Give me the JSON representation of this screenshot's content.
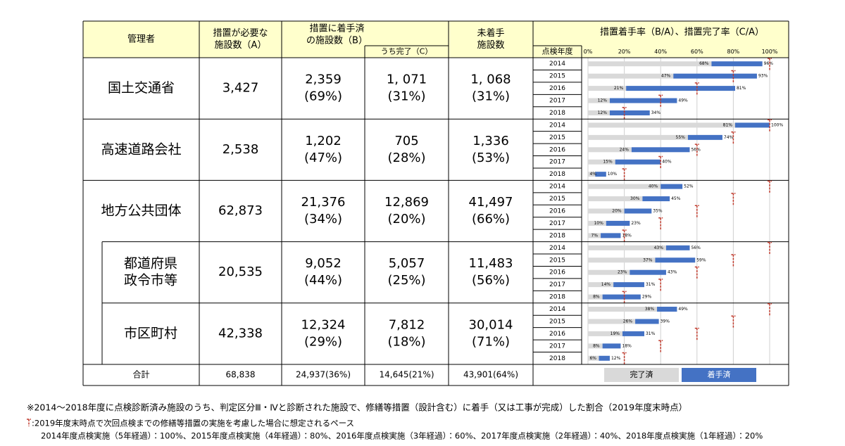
{
  "table": {
    "headers": {
      "manager": "管理者",
      "needed": [
        "措置が必要な",
        "施設数（A）"
      ],
      "started": [
        "措置に着手済",
        "の施設数（B）"
      ],
      "completed": "うち完了（C）",
      "not_started": [
        "未着手",
        "施設数"
      ],
      "rate": "措置着手率（B/A）、措置完了率（C/A）",
      "year": "点検年度"
    },
    "xlim": [
      0,
      100
    ],
    "xticks": [
      {
        "value": 0,
        "label": "0%"
      },
      {
        "value": 20,
        "label": "20%"
      },
      {
        "value": 40,
        "label": "40%"
      },
      {
        "value": 60,
        "label": "60%"
      },
      {
        "value": 80,
        "label": "80%"
      },
      {
        "value": 100,
        "label": "100%"
      }
    ],
    "rows": [
      {
        "name": [
          "国土交通省"
        ],
        "needed": "3,427",
        "started": [
          "2,359",
          "(69%)"
        ],
        "completed": [
          "1, 071",
          "(31%)"
        ],
        "not_started": [
          "1, 068",
          "(31%)"
        ],
        "years": [
          "2014",
          "2015",
          "2016",
          "2017",
          "2018"
        ],
        "completed_rate": {
          "values": [
            68,
            47,
            21,
            12,
            12
          ],
          "value_labels": [
            "68%",
            "47%",
            "21%",
            "12%",
            "12%"
          ]
        },
        "started_rate": {
          "values": [
            96,
            93,
            81,
            49,
            34
          ],
          "value_labels": [
            "96%",
            "93%",
            "81%",
            "49%",
            "34%"
          ]
        },
        "pace": [
          100,
          80,
          60,
          40,
          20
        ]
      },
      {
        "name": [
          "高速道路会社"
        ],
        "needed": "2,538",
        "started": [
          "1,202",
          "(47%)"
        ],
        "completed": [
          "705",
          "(28%)"
        ],
        "not_started": [
          "1,336",
          "(53%)"
        ],
        "years": [
          "2014",
          "2015",
          "2016",
          "2017",
          "2018"
        ],
        "completed_rate": {
          "values": [
            81,
            55,
            24,
            15,
            4
          ],
          "value_labels": [
            "81%",
            "55%",
            "24%",
            "15%",
            "4%"
          ]
        },
        "started_rate": {
          "values": [
            100,
            74,
            56,
            40,
            10
          ],
          "value_labels": [
            "100%",
            "74%",
            "56%",
            "40%",
            "10%"
          ]
        },
        "pace": [
          100,
          80,
          60,
          40,
          20
        ]
      },
      {
        "name": [
          "地方公共団体"
        ],
        "needed": "62,873",
        "started": [
          "21,376",
          "(34%)"
        ],
        "completed": [
          "12,869",
          "(20%)"
        ],
        "not_started": [
          "41,497",
          "(66%)"
        ],
        "years": [
          "2014",
          "2015",
          "2016",
          "2017",
          "2018"
        ],
        "completed_rate": {
          "values": [
            40,
            30,
            20,
            10,
            7
          ],
          "value_labels": [
            "40%",
            "30%",
            "20%",
            "10%",
            "7%"
          ]
        },
        "started_rate": {
          "values": [
            52,
            45,
            35,
            23,
            18
          ],
          "value_labels": [
            "52%",
            "45%",
            "35%",
            "23%",
            "18%"
          ]
        },
        "pace": [
          100,
          80,
          60,
          40,
          20
        ]
      },
      {
        "name": [
          "都道府県",
          "政令市等"
        ],
        "needed": "20,535",
        "started": [
          "9,052",
          "(44%)"
        ],
        "completed": [
          "5,057",
          "(25%)"
        ],
        "not_started": [
          "11,483",
          "(56%)"
        ],
        "years": [
          "2014",
          "2015",
          "2016",
          "2017",
          "2018"
        ],
        "completed_rate": {
          "values": [
            43,
            37,
            23,
            14,
            8
          ],
          "value_labels": [
            "43%",
            "37%",
            "23%",
            "14%",
            "8%"
          ]
        },
        "started_rate": {
          "values": [
            56,
            59,
            43,
            31,
            29
          ],
          "value_labels": [
            "56%",
            "59%",
            "43%",
            "31%",
            "29%"
          ]
        },
        "pace": [
          100,
          80,
          60,
          40,
          20
        ]
      },
      {
        "name": [
          "市区町村"
        ],
        "needed": "42,338",
        "started": [
          "12,324",
          "(29%)"
        ],
        "completed": [
          "7,812",
          "(18%)"
        ],
        "not_started": [
          "30,014",
          "(71%)"
        ],
        "years": [
          "2014",
          "2015",
          "2016",
          "2017",
          "2018"
        ],
        "completed_rate": {
          "values": [
            38,
            26,
            19,
            8,
            6
          ],
          "value_labels": [
            "38%",
            "26%",
            "19%",
            "8%",
            "6%"
          ]
        },
        "started_rate": {
          "values": [
            49,
            39,
            31,
            18,
            12
          ],
          "value_labels": [
            "49%",
            "39%",
            "31%",
            "18%",
            "12%"
          ]
        },
        "pace": [
          100,
          80,
          60,
          40,
          20
        ]
      }
    ],
    "total": {
      "label": "合計",
      "needed": "68,838",
      "started": "24,937(36%)",
      "completed": "14,645(21%)",
      "not_started": "43,901(64%)"
    },
    "legend": [
      {
        "name": "完了済",
        "color": "#d9d9d9"
      },
      {
        "name": "着手済",
        "color": "#4472c4"
      }
    ],
    "pace_color": "#c0392b"
  },
  "notes": [
    "※2014～2018年度に点検診断済み施設のうち、判定区分Ⅲ・Ⅳと診断された施設で、修繕等措置（設計含む）に着手（又は工事が完成）した割合（2019年度末時点）",
    ":2019年度末時点で次回点検までの修繕等措置の実施を考慮した場合に想定されるペース",
    "2014年度点検実施（5年経過）：100%、2015年度点検実施（4年経過）：80%、2016年度点検実施（3年経過）：60%、2017年度点検実施（2年経過）：40%、2018年度点検実施（1年経過）：20%"
  ]
}
